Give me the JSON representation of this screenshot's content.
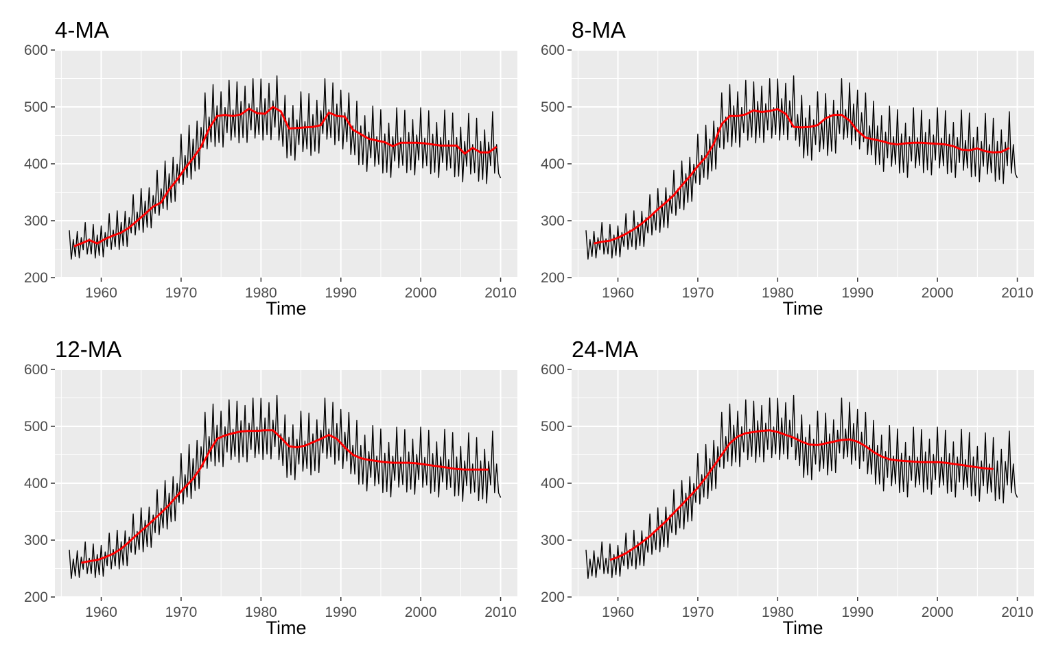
{
  "colors": {
    "panel_background": "#ebebeb",
    "grid": "#ffffff",
    "raw_series": "#000000",
    "moving_average": "#ff0000"
  },
  "chart_data": [
    {
      "type": "line",
      "title": "4-MA",
      "xlabel": "Time",
      "ylabel": "",
      "xlim": [
        1954.2,
        2012.1
      ],
      "ylim": [
        200,
        600
      ],
      "x_ticks": [
        1960,
        1970,
        1980,
        1990,
        2000,
        2010
      ],
      "y_ticks": [
        200,
        300,
        400,
        500,
        600
      ],
      "grid": true,
      "legend": "none",
      "series": [
        {
          "role": "raw",
          "x": [
            1956,
            1957,
            1958,
            1959,
            1960,
            1961,
            1962,
            1963,
            1964,
            1965,
            1966,
            1967,
            1968,
            1969,
            1970,
            1971,
            1972,
            1973,
            1974,
            1975,
            1976,
            1977,
            1978,
            1979,
            1980,
            1981,
            1982,
            1983,
            1984,
            1985,
            1986,
            1987,
            1988,
            1989,
            1990,
            1991,
            1992,
            1993,
            1994,
            1995,
            1996,
            1997,
            1998,
            1999,
            2000,
            2001,
            2002,
            2003,
            2004,
            2005,
            2006,
            2007,
            2008,
            2009,
            2010
          ],
          "base": [
            255,
            262,
            265,
            262,
            268,
            275,
            281,
            290,
            303,
            315,
            328,
            340,
            358,
            378,
            398,
            416,
            438,
            465,
            482,
            487,
            485,
            487,
            497,
            488,
            492,
            502,
            493,
            463,
            463,
            465,
            466,
            472,
            488,
            485,
            490,
            463,
            453,
            445,
            440,
            438,
            432,
            437,
            437,
            438,
            437,
            436,
            433,
            433,
            432,
            425,
            427,
            423,
            420,
            430,
            420
          ]
        },
        {
          "role": "moving-average",
          "x": [
            1956.6,
            1957.5,
            1958.5,
            1959.5,
            1960.5,
            1961.5,
            1962.5,
            1963.5,
            1964.5,
            1965.5,
            1966.5,
            1967.5,
            1968.5,
            1969.5,
            1970.5,
            1971.5,
            1972.5,
            1973.5,
            1974.5,
            1975.5,
            1976.5,
            1977.5,
            1978.5,
            1979.5,
            1980.5,
            1981.5,
            1982.5,
            1983.5,
            1984.5,
            1985.5,
            1986.5,
            1987.5,
            1988.5,
            1989.5,
            1990.5,
            1991.5,
            1992.5,
            1993.5,
            1994.5,
            1995.5,
            1996.5,
            1997.5,
            1998.5,
            1999.5,
            2000.5,
            2001.5,
            2002.5,
            2003.5,
            2004.5,
            2005.5,
            2006.5,
            2007.5,
            2008.5,
            2009.5
          ],
          "y": [
            255,
            260,
            266,
            260,
            268,
            274,
            279,
            288,
            300,
            312,
            325,
            332,
            355,
            372,
            392,
            410,
            430,
            462,
            484,
            486,
            484,
            487,
            497,
            489,
            488,
            500,
            492,
            462,
            463,
            464,
            465,
            468,
            490,
            484,
            483,
            460,
            452,
            444,
            441,
            438,
            431,
            437,
            437,
            437,
            436,
            434,
            432,
            432,
            432,
            418,
            428,
            420,
            420,
            430
          ]
        }
      ]
    },
    {
      "type": "line",
      "title": "8-MA",
      "xlabel": "Time",
      "ylabel": "",
      "xlim": [
        1954.2,
        2012.1
      ],
      "ylim": [
        200,
        600
      ],
      "x_ticks": [
        1960,
        1970,
        1980,
        1990,
        2000,
        2010
      ],
      "y_ticks": [
        200,
        300,
        400,
        500,
        600
      ],
      "grid": true,
      "legend": "none",
      "series": [
        {
          "role": "raw",
          "x": [
            1956,
            1957,
            1958,
            1959,
            1960,
            1961,
            1962,
            1963,
            1964,
            1965,
            1966,
            1967,
            1968,
            1969,
            1970,
            1971,
            1972,
            1973,
            1974,
            1975,
            1976,
            1977,
            1978,
            1979,
            1980,
            1981,
            1982,
            1983,
            1984,
            1985,
            1986,
            1987,
            1988,
            1989,
            1990,
            1991,
            1992,
            1993,
            1994,
            1995,
            1996,
            1997,
            1998,
            1999,
            2000,
            2001,
            2002,
            2003,
            2004,
            2005,
            2006,
            2007,
            2008,
            2009,
            2010
          ],
          "base": [
            255,
            262,
            265,
            262,
            268,
            275,
            281,
            290,
            303,
            315,
            328,
            340,
            358,
            378,
            398,
            416,
            438,
            465,
            482,
            487,
            485,
            487,
            497,
            488,
            492,
            502,
            493,
            463,
            463,
            465,
            466,
            472,
            488,
            485,
            490,
            463,
            453,
            445,
            440,
            438,
            432,
            437,
            437,
            438,
            437,
            436,
            433,
            433,
            432,
            425,
            427,
            423,
            420,
            430,
            420
          ]
        },
        {
          "role": "moving-average",
          "x": [
            1957,
            1958,
            1959,
            1960,
            1961,
            1962,
            1963,
            1964,
            1965,
            1966,
            1967,
            1968,
            1969,
            1970,
            1971,
            1972,
            1973,
            1974,
            1975,
            1976,
            1977,
            1978,
            1979,
            1980,
            1981,
            1982,
            1983,
            1984,
            1985,
            1986,
            1987,
            1988,
            1989,
            1990,
            1991,
            1992,
            1993,
            1994,
            1995,
            1996,
            1997,
            1998,
            1999,
            2000,
            2001,
            2002,
            2003,
            2004,
            2005,
            2006,
            2007,
            2008,
            2009
          ],
          "y": [
            260,
            263,
            265,
            270,
            277,
            285,
            295,
            307,
            320,
            332,
            345,
            362,
            378,
            396,
            412,
            435,
            470,
            484,
            484,
            487,
            494,
            491,
            493,
            496,
            488,
            465,
            464,
            465,
            468,
            480,
            486,
            486,
            476,
            458,
            446,
            443,
            440,
            436,
            434,
            436,
            437,
            437,
            436,
            435,
            434,
            431,
            425,
            424,
            427,
            422,
            420,
            421,
            428
          ]
        }
      ]
    },
    {
      "type": "line",
      "title": "12-MA",
      "xlabel": "Time",
      "ylabel": "",
      "xlim": [
        1954.2,
        2012.1
      ],
      "ylim": [
        200,
        600
      ],
      "x_ticks": [
        1960,
        1970,
        1980,
        1990,
        2000,
        2010
      ],
      "y_ticks": [
        200,
        300,
        400,
        500,
        600
      ],
      "grid": true,
      "legend": "none",
      "series": [
        {
          "role": "raw",
          "x": [
            1956,
            1957,
            1958,
            1959,
            1960,
            1961,
            1962,
            1963,
            1964,
            1965,
            1966,
            1967,
            1968,
            1969,
            1970,
            1971,
            1972,
            1973,
            1974,
            1975,
            1976,
            1977,
            1978,
            1979,
            1980,
            1981,
            1982,
            1983,
            1984,
            1985,
            1986,
            1987,
            1988,
            1989,
            1990,
            1991,
            1992,
            1993,
            1994,
            1995,
            1996,
            1997,
            1998,
            1999,
            2000,
            2001,
            2002,
            2003,
            2004,
            2005,
            2006,
            2007,
            2008,
            2009,
            2010
          ],
          "base": [
            255,
            262,
            265,
            262,
            268,
            275,
            281,
            290,
            303,
            315,
            328,
            340,
            358,
            378,
            398,
            416,
            438,
            465,
            482,
            487,
            485,
            487,
            497,
            488,
            492,
            502,
            493,
            463,
            463,
            465,
            466,
            472,
            488,
            485,
            490,
            463,
            453,
            445,
            440,
            438,
            432,
            437,
            437,
            438,
            437,
            436,
            433,
            433,
            432,
            425,
            427,
            423,
            420,
            430,
            420
          ]
        },
        {
          "role": "moving-average",
          "x": [
            1957.5,
            1958.5,
            1959.5,
            1960.5,
            1961.5,
            1962.5,
            1963.5,
            1964.5,
            1965.5,
            1966.5,
            1967.5,
            1968.5,
            1969.5,
            1970.5,
            1971.5,
            1972.5,
            1973.5,
            1974.5,
            1975.5,
            1976.5,
            1977.5,
            1978.5,
            1979.5,
            1980.5,
            1981.5,
            1982.5,
            1983.5,
            1984.5,
            1985.5,
            1986.5,
            1987.5,
            1988.5,
            1989.5,
            1990.5,
            1991.5,
            1992.5,
            1993.5,
            1994.5,
            1995.5,
            1996.5,
            1997.5,
            1998.5,
            1999.5,
            2000.5,
            2001.5,
            2002.5,
            2003.5,
            2004.5,
            2005.5,
            2006.5,
            2007.5,
            2008.5
          ],
          "y": [
            260,
            263,
            265,
            270,
            276,
            285,
            297,
            310,
            322,
            335,
            348,
            362,
            378,
            393,
            408,
            428,
            455,
            478,
            484,
            488,
            491,
            492,
            492,
            493,
            493,
            480,
            465,
            463,
            466,
            472,
            478,
            485,
            478,
            463,
            450,
            444,
            441,
            439,
            437,
            436,
            436,
            436,
            435,
            433,
            431,
            429,
            427,
            425,
            424,
            424,
            424,
            424
          ]
        }
      ]
    },
    {
      "type": "line",
      "title": "24-MA",
      "xlabel": "Time",
      "ylabel": "",
      "xlim": [
        1954.2,
        2012.1
      ],
      "ylim": [
        200,
        600
      ],
      "x_ticks": [
        1960,
        1970,
        1980,
        1990,
        2000,
        2010
      ],
      "y_ticks": [
        200,
        300,
        400,
        500,
        600
      ],
      "grid": true,
      "legend": "none",
      "series": [
        {
          "role": "raw",
          "x": [
            1956,
            1957,
            1958,
            1959,
            1960,
            1961,
            1962,
            1963,
            1964,
            1965,
            1966,
            1967,
            1968,
            1969,
            1970,
            1971,
            1972,
            1973,
            1974,
            1975,
            1976,
            1977,
            1978,
            1979,
            1980,
            1981,
            1982,
            1983,
            1984,
            1985,
            1986,
            1987,
            1988,
            1989,
            1990,
            1991,
            1992,
            1993,
            1994,
            1995,
            1996,
            1997,
            1998,
            1999,
            2000,
            2001,
            2002,
            2003,
            2004,
            2005,
            2006,
            2007,
            2008,
            2009,
            2010
          ],
          "base": [
            255,
            262,
            265,
            262,
            268,
            275,
            281,
            290,
            303,
            315,
            328,
            340,
            358,
            378,
            398,
            416,
            438,
            465,
            482,
            487,
            485,
            487,
            497,
            488,
            492,
            502,
            493,
            463,
            463,
            465,
            466,
            472,
            488,
            485,
            490,
            463,
            453,
            445,
            440,
            438,
            432,
            437,
            437,
            438,
            437,
            436,
            433,
            433,
            432,
            425,
            427,
            423,
            420,
            430,
            420
          ]
        },
        {
          "role": "moving-average",
          "x": [
            1959,
            1960,
            1961,
            1962,
            1963,
            1964,
            1965,
            1966,
            1967,
            1968,
            1969,
            1970,
            1971,
            1972,
            1973,
            1974,
            1975,
            1976,
            1977,
            1978,
            1979,
            1980,
            1981,
            1982,
            1983,
            1984,
            1985,
            1986,
            1987,
            1988,
            1989,
            1990,
            1991,
            1992,
            1993,
            1994,
            1995,
            1996,
            1997,
            1998,
            1999,
            2000,
            2001,
            2002,
            2003,
            2004,
            2005,
            2006,
            2007
          ],
          "y": [
            265,
            270,
            277,
            286,
            296,
            307,
            320,
            333,
            348,
            362,
            377,
            392,
            410,
            430,
            450,
            470,
            482,
            488,
            490,
            492,
            493,
            490,
            485,
            480,
            473,
            468,
            467,
            470,
            473,
            476,
            477,
            473,
            465,
            455,
            447,
            442,
            440,
            439,
            438,
            437,
            437,
            437,
            436,
            434,
            432,
            430,
            428,
            426,
            425
          ]
        }
      ]
    }
  ]
}
